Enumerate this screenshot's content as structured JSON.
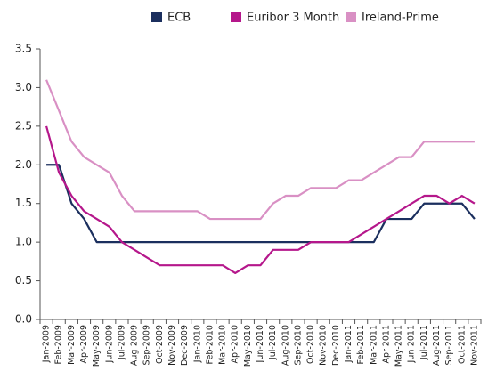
{
  "chart_data": {
    "type": "line",
    "categories": [
      "Jan-2009",
      "Feb-2009",
      "Mar-2009",
      "Apr-2009",
      "May-2009",
      "Jun-2009",
      "Jul-2009",
      "Aug-2009",
      "Sep-2009",
      "Oct-2009",
      "Nov-2009",
      "Dec-2009",
      "Jan-2010",
      "Feb-2010",
      "Mar-2010",
      "Apr-2010",
      "May-2010",
      "Jun-2010",
      "Jul-2010",
      "Aug-2010",
      "Sep-2010",
      "Oct-2010",
      "Nov-2010",
      "Dec-2010",
      "Jan-2011",
      "Feb-2011",
      "Mar-2011",
      "Apr-2011",
      "May-2011",
      "Jun-2011",
      "Jul-2011",
      "Aug-2011",
      "Sep-2011",
      "Oct-2011",
      "Nov-2011"
    ],
    "series": [
      {
        "name": "ECB",
        "color": "#1b2f5e",
        "values": [
          2.0,
          2.0,
          1.5,
          1.3,
          1.0,
          1.0,
          1.0,
          1.0,
          1.0,
          1.0,
          1.0,
          1.0,
          1.0,
          1.0,
          1.0,
          1.0,
          1.0,
          1.0,
          1.0,
          1.0,
          1.0,
          1.0,
          1.0,
          1.0,
          1.0,
          1.0,
          1.0,
          1.3,
          1.3,
          1.3,
          1.5,
          1.5,
          1.5,
          1.5,
          1.3
        ]
      },
      {
        "name": "Euribor 3 Month",
        "color": "#b5178b",
        "values": [
          2.5,
          1.9,
          1.6,
          1.4,
          1.3,
          1.2,
          1.0,
          0.9,
          0.8,
          0.7,
          0.7,
          0.7,
          0.7,
          0.7,
          0.7,
          0.6,
          0.7,
          0.7,
          0.9,
          0.9,
          0.9,
          1.0,
          1.0,
          1.0,
          1.0,
          1.1,
          1.2,
          1.3,
          1.4,
          1.5,
          1.6,
          1.6,
          1.5,
          1.6,
          1.5
        ]
      },
      {
        "name": "Ireland-Prime",
        "color": "#d990c4",
        "values": [
          3.1,
          2.7,
          2.3,
          2.1,
          2.0,
          1.9,
          1.6,
          1.4,
          1.4,
          1.4,
          1.4,
          1.4,
          1.4,
          1.3,
          1.3,
          1.3,
          1.3,
          1.3,
          1.5,
          1.6,
          1.6,
          1.7,
          1.7,
          1.7,
          1.8,
          1.8,
          1.9,
          2.0,
          2.1,
          2.1,
          2.3,
          2.3,
          2.3,
          2.3,
          2.3
        ]
      }
    ],
    "ylim": [
      0,
      3.5
    ],
    "yticks": [
      {
        "value": 0,
        "label": "0.0"
      },
      0.5,
      {
        "value": 1,
        "label": "1.0"
      },
      1.5,
      {
        "value": 2,
        "label": "2.0"
      },
      2.5,
      {
        "value": 3,
        "label": "3.0"
      },
      3.5
    ],
    "grid": false,
    "legend": "top"
  }
}
